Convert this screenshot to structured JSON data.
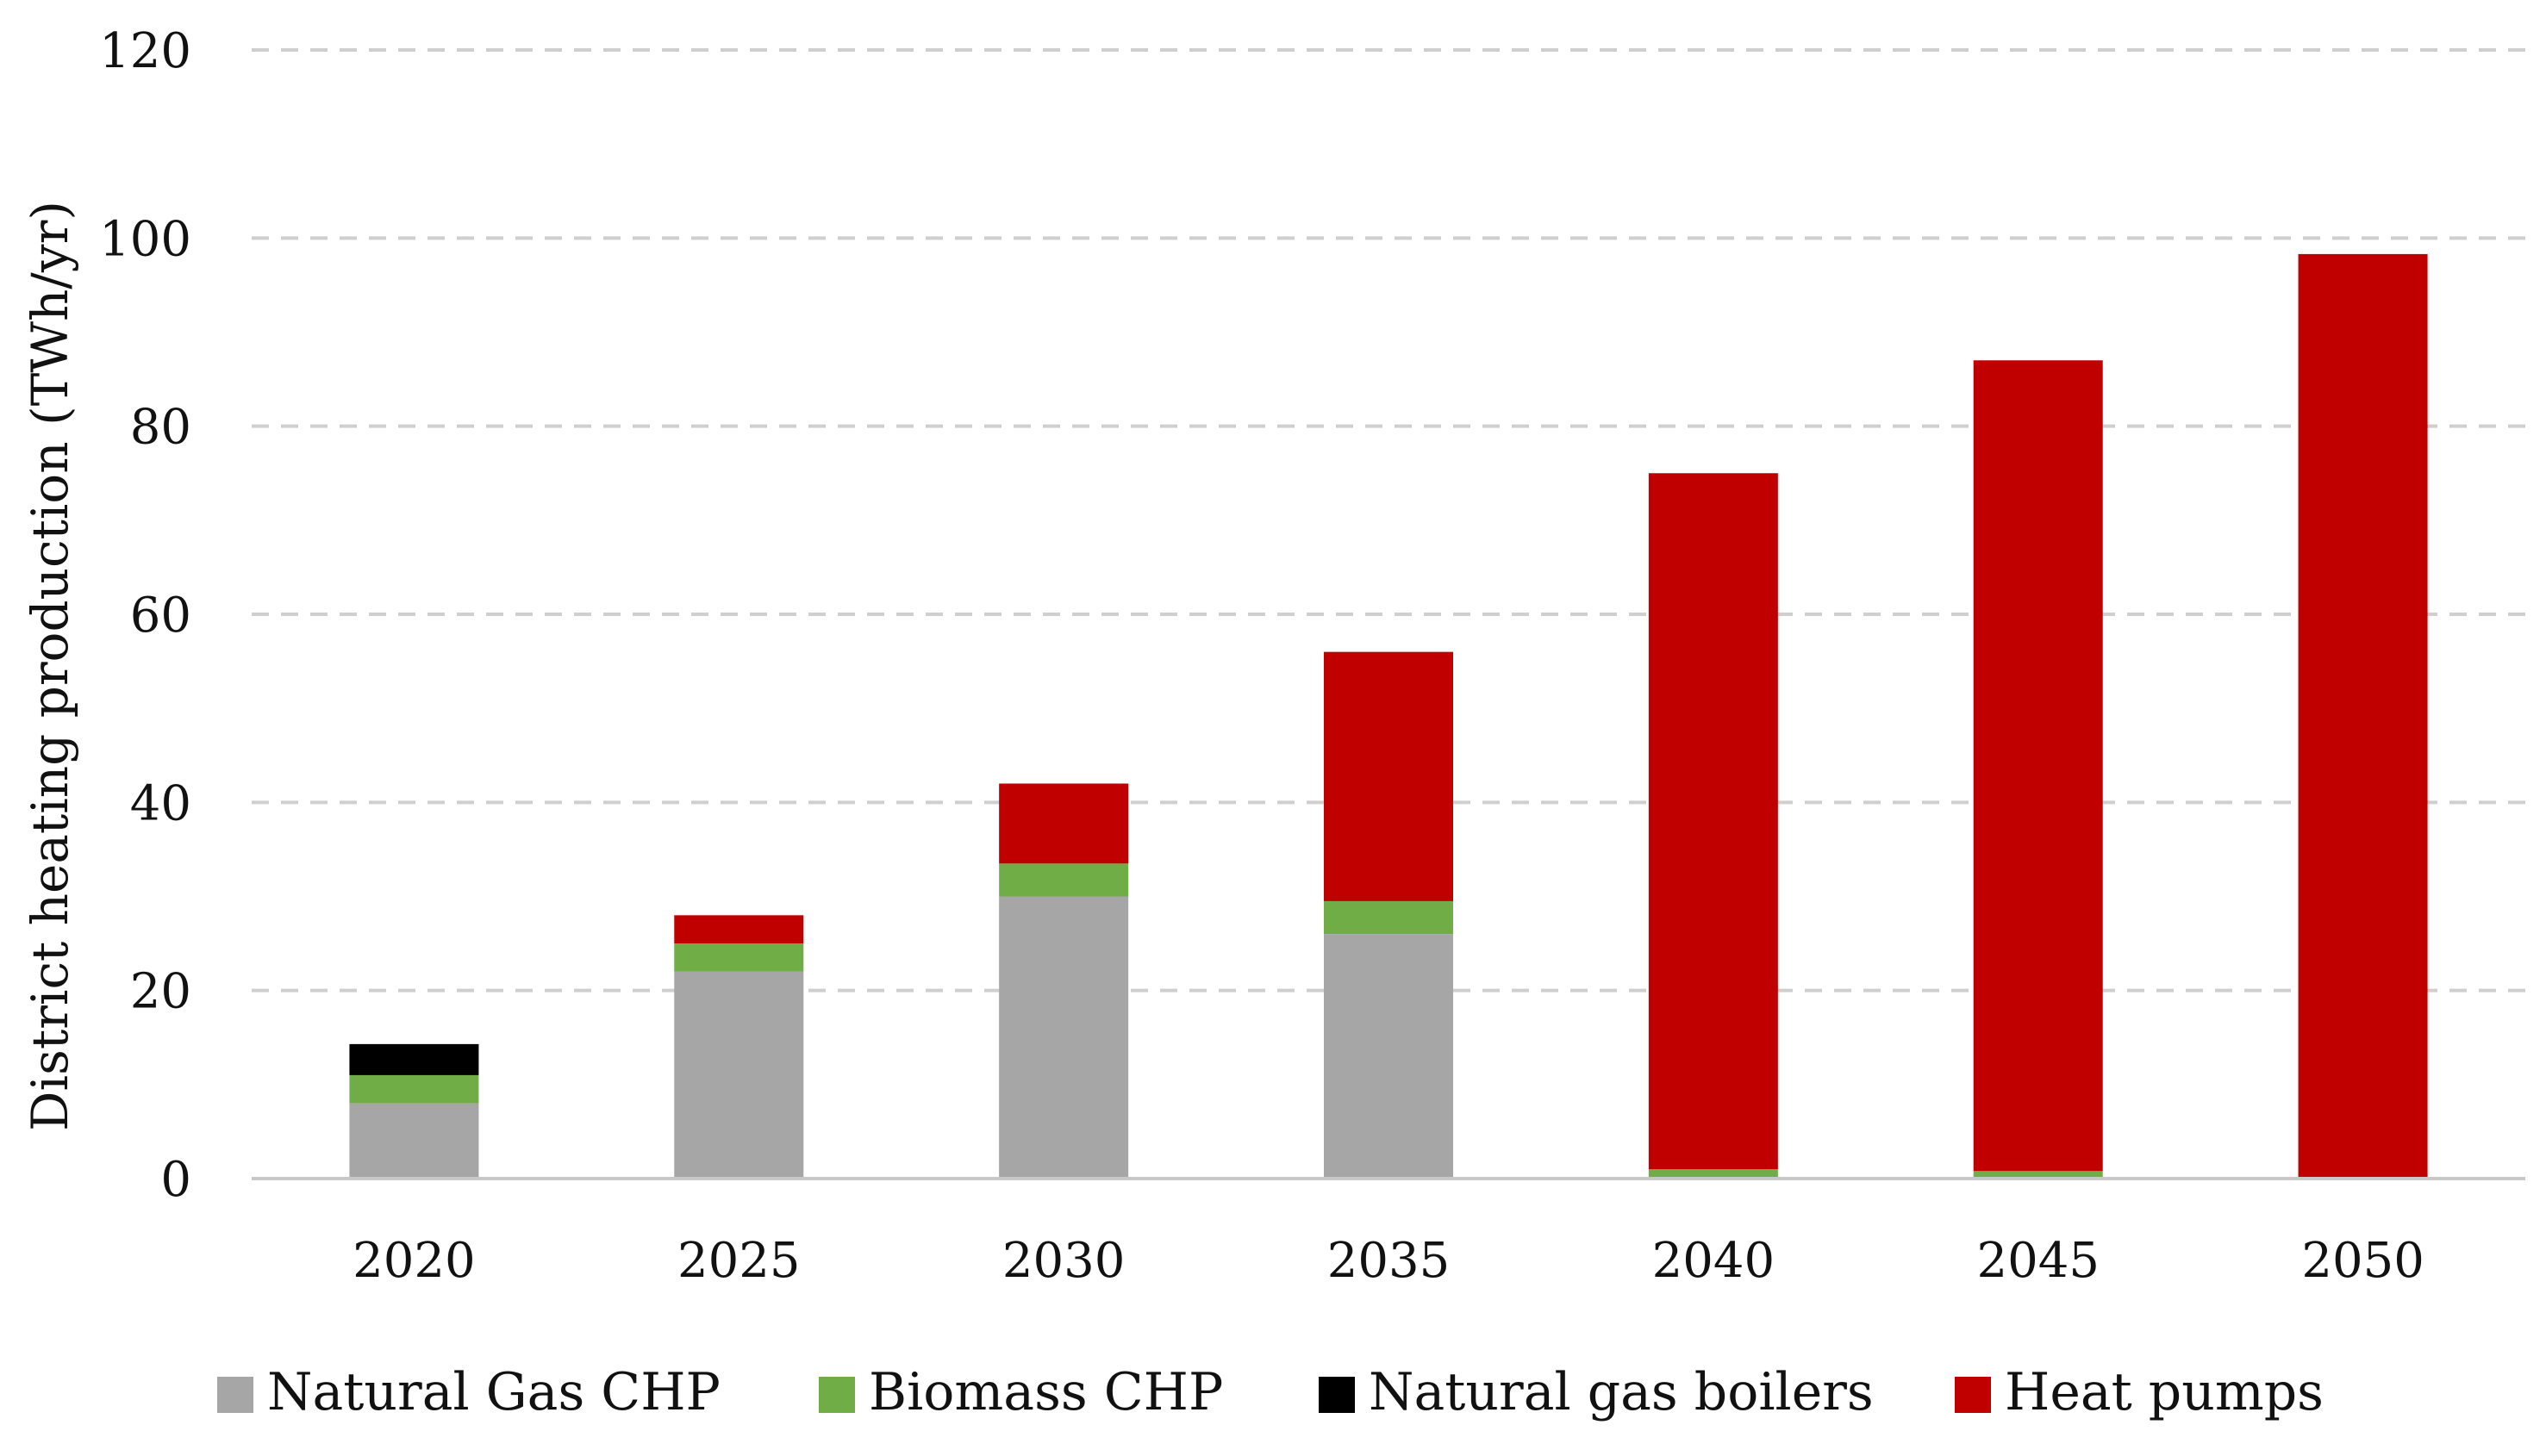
{
  "chart_data": {
    "type": "bar",
    "stacked": true,
    "title": "",
    "xlabel": "",
    "ylabel": "District heating production (TWh/yr)",
    "ylim": [
      0,
      120
    ],
    "yticks": [
      0,
      20,
      40,
      60,
      80,
      100,
      120
    ],
    "grid": true,
    "legend_position": "bottom",
    "categories": [
      "2020",
      "2025",
      "2030",
      "2035",
      "2040",
      "2045",
      "2050"
    ],
    "series": [
      {
        "name": "Natural Gas CHP",
        "color": "#a6a6a6",
        "values": [
          8,
          22,
          30,
          26,
          0,
          0,
          0
        ]
      },
      {
        "name": "Biomass CHP",
        "color": "#70ad47",
        "values": [
          3,
          3,
          3.5,
          3.5,
          1,
          0.8,
          0
        ]
      },
      {
        "name": "Natural gas boilers",
        "color": "#000000",
        "values": [
          3.3,
          0,
          0,
          0,
          0,
          0,
          0
        ]
      },
      {
        "name": "Heat pumps",
        "color": "#c00000",
        "values": [
          0,
          3,
          8.5,
          26.5,
          74,
          86.2,
          98.3
        ]
      }
    ]
  }
}
